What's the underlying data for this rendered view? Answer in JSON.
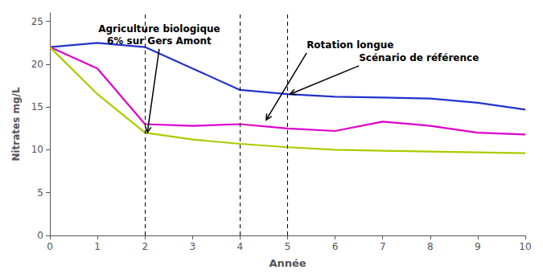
{
  "chart_data": {
    "type": "line",
    "xlabel": "Année",
    "ylabel": "Nitrates mg/L",
    "x": [
      0,
      1,
      2,
      3,
      4,
      5,
      6,
      7,
      8,
      9,
      10
    ],
    "xlim": [
      0,
      10
    ],
    "xticks": [
      0,
      1,
      2,
      3,
      4,
      5,
      6,
      7,
      8,
      9,
      10
    ],
    "ylim": [
      0,
      26
    ],
    "yticks": [
      0,
      5,
      10,
      15,
      20,
      25
    ],
    "grid": false,
    "series": [
      {
        "color": "#2233cc",
        "values": [
          22.0,
          22.5,
          22.0,
          19.5,
          17.0,
          16.5,
          16.2,
          16.1,
          16.0,
          15.5,
          14.7
        ]
      },
      {
        "color": "#dd00cc",
        "values": [
          22.0,
          19.5,
          13.0,
          12.8,
          13.0,
          12.5,
          12.2,
          13.3,
          12.8,
          12.0,
          11.8
        ]
      },
      {
        "color": "#aacc00",
        "values": [
          22.0,
          16.5,
          12.0,
          11.2,
          10.7,
          10.3,
          10.0,
          9.9,
          9.8,
          9.7,
          9.6
        ]
      }
    ],
    "vlines": [
      2,
      4,
      5
    ],
    "annotations": [
      {
        "text": "Agriculture biologique\n6% sur Gers Amont",
        "xy": [
          2.05,
          12.0
        ],
        "xytext": [
          2.3,
          24.8
        ]
      },
      {
        "text": "Rotation longue",
        "xy": [
          4.55,
          13.5
        ],
        "xytext": [
          5.4,
          21.5
        ]
      },
      {
        "text": "Scénario de référence",
        "xy": [
          5.05,
          16.5
        ],
        "xytext": [
          6.5,
          20.0
        ]
      }
    ]
  }
}
